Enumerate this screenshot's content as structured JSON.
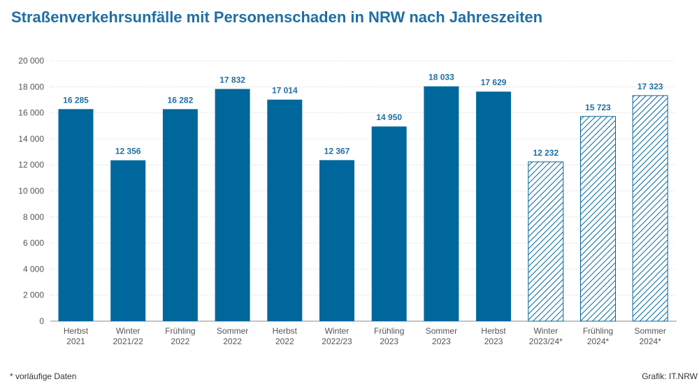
{
  "title": "Straßenverkehrsunfälle mit Personenschaden in NRW nach Jahreszeiten",
  "footnote": "*  vorläufige Daten",
  "credit": "Grafik: IT.NRW",
  "colors": {
    "bar": "#00679c",
    "label": "#1f6fa3",
    "axis_text": "#555555",
    "grid": "#cccccc"
  },
  "chart_data": {
    "type": "bar",
    "title": "Straßenverkehrsunfälle mit Personenschaden in NRW nach Jahreszeiten",
    "xlabel": "",
    "ylabel": "",
    "ylim": [
      0,
      20000
    ],
    "yticks": [
      0,
      2000,
      4000,
      6000,
      8000,
      10000,
      12000,
      14000,
      16000,
      18000,
      20000
    ],
    "ytick_labels": [
      "0",
      "2 000",
      "4 000",
      "6 000",
      "8 000",
      "10 000",
      "12 000",
      "14 000",
      "16 000",
      "18 000",
      "20 000"
    ],
    "grid": true,
    "categories": [
      [
        "Herbst",
        "2021"
      ],
      [
        "Winter",
        "2021/22"
      ],
      [
        "Frühling",
        "2022"
      ],
      [
        "Sommer",
        "2022"
      ],
      [
        "Herbst",
        "2022"
      ],
      [
        "Winter",
        "2022/23"
      ],
      [
        "Frühling",
        "2023"
      ],
      [
        "Sommer",
        "2023"
      ],
      [
        "Herbst",
        "2023"
      ],
      [
        "Winter",
        "2023/24*"
      ],
      [
        "Frühling",
        "2024*"
      ],
      [
        "Sommer",
        "2024*"
      ]
    ],
    "values": [
      16285,
      12356,
      16282,
      17832,
      17014,
      12367,
      14950,
      18033,
      17629,
      12232,
      15723,
      17323
    ],
    "value_labels": [
      "16 285",
      "12 356",
      "16 282",
      "17 832",
      "17 014",
      "12 367",
      "14 950",
      "18 033",
      "17 629",
      "12 232",
      "15 723",
      "17 323"
    ],
    "provisional": [
      false,
      false,
      false,
      false,
      false,
      false,
      false,
      false,
      false,
      true,
      true,
      true
    ]
  }
}
